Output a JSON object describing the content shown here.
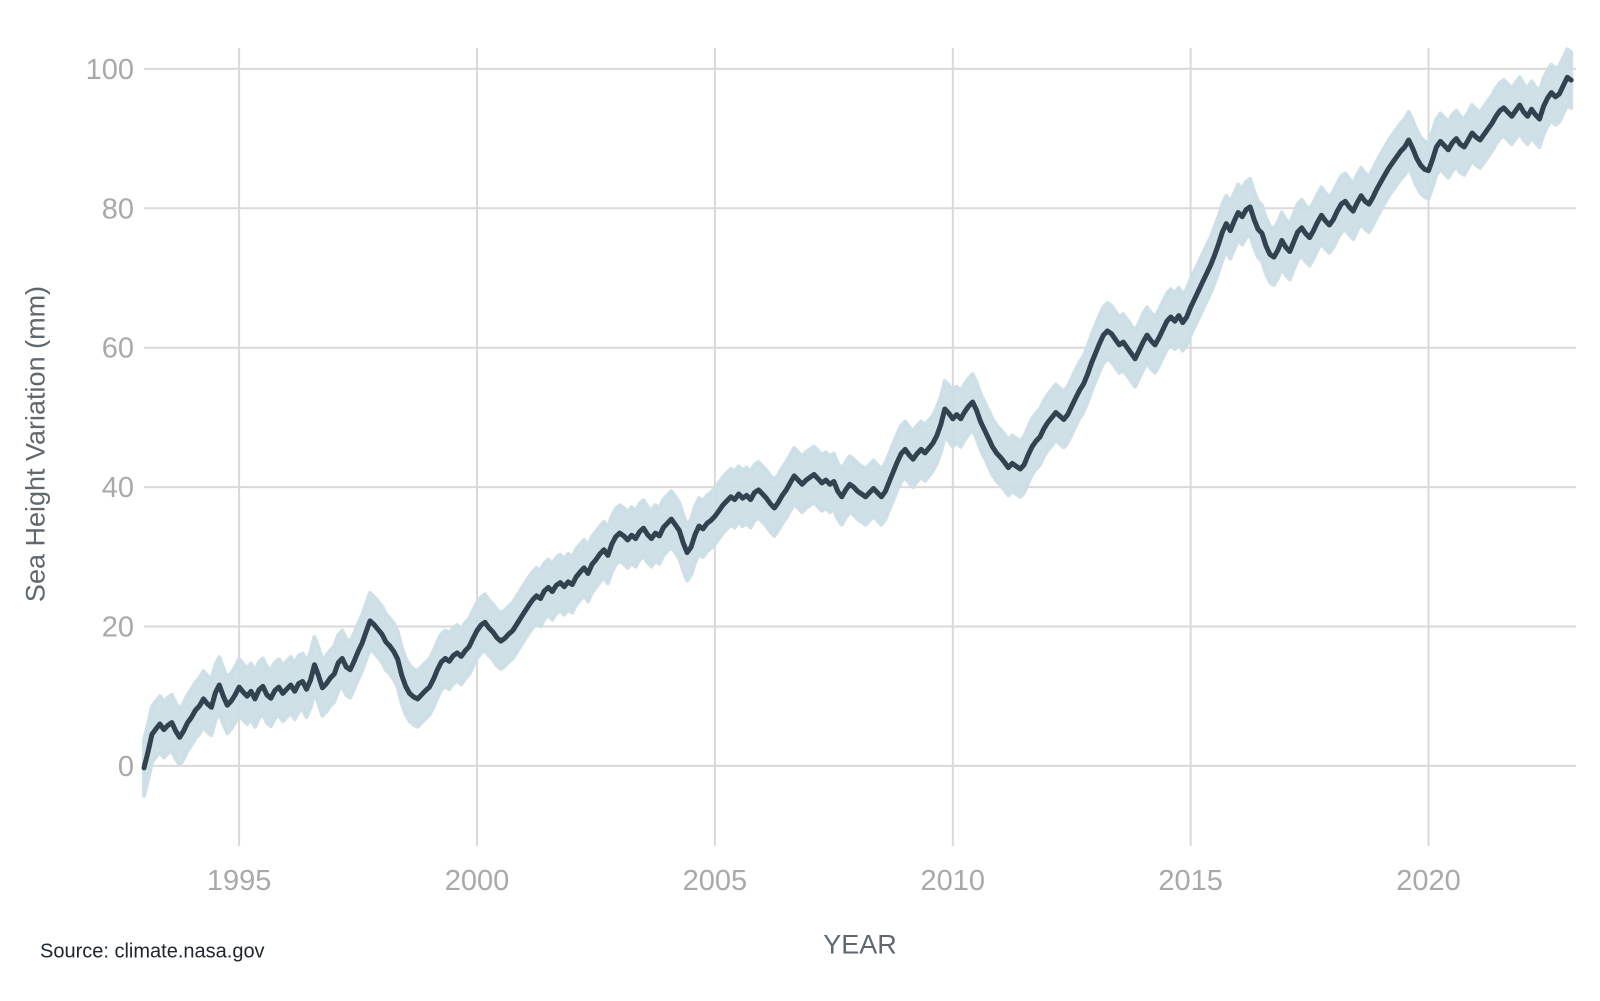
{
  "chart_data": {
    "type": "line",
    "title": "",
    "xlabel": "YEAR",
    "ylabel": "Sea Height Variation (mm)",
    "source": "Source: climate.nasa.gov",
    "x_ticks": [
      1995,
      2000,
      2005,
      2010,
      2015,
      2020
    ],
    "y_ticks": [
      0,
      20,
      40,
      60,
      80,
      100
    ],
    "xlim": [
      1993.0,
      2023.1
    ],
    "ylim": [
      -11.5,
      103.0
    ],
    "grid": true,
    "legend": "none",
    "uncertainty_mm": 4.0,
    "colors": {
      "line": "#30434e",
      "band": "#ccdee5",
      "grid": "#d9d9d9",
      "tick_label": "#a9a9a9",
      "axis_title": "#5e686e",
      "source_text": "#1d272e",
      "background": "#ffffff"
    },
    "series": [
      {
        "name": "Sea Height Variation",
        "x_start": 1993.0,
        "x_step_years": 0.0833333,
        "values": [
          -0.3,
          2.0,
          4.5,
          5.3,
          6.0,
          5.2,
          5.8,
          6.2,
          5.0,
          4.1,
          5.0,
          6.2,
          7.0,
          8.0,
          8.6,
          9.6,
          8.9,
          8.4,
          10.5,
          11.6,
          10.0,
          8.7,
          9.3,
          10.2,
          11.3,
          10.6,
          10.0,
          10.7,
          9.6,
          10.9,
          11.4,
          10.2,
          9.7,
          10.8,
          11.3,
          10.4,
          11.0,
          11.6,
          10.7,
          11.8,
          12.1,
          11.0,
          12.3,
          14.5,
          13.0,
          11.2,
          11.8,
          12.6,
          13.2,
          14.8,
          15.4,
          14.2,
          13.8,
          15.0,
          16.4,
          17.6,
          19.2,
          20.8,
          20.3,
          19.6,
          18.9,
          17.8,
          17.2,
          16.4,
          15.3,
          13.0,
          11.4,
          10.4,
          9.9,
          9.6,
          10.2,
          10.8,
          11.3,
          12.4,
          13.8,
          14.9,
          15.4,
          15.0,
          15.8,
          16.2,
          15.7,
          16.5,
          17.1,
          18.3,
          19.4,
          20.2,
          20.6,
          19.8,
          19.2,
          18.4,
          17.9,
          18.3,
          18.9,
          19.4,
          20.3,
          21.2,
          22.1,
          23.0,
          23.8,
          24.4,
          24.0,
          25.1,
          25.6,
          25.0,
          25.9,
          26.3,
          25.7,
          26.4,
          26.0,
          27.1,
          27.8,
          28.4,
          27.6,
          28.9,
          29.6,
          30.4,
          31.0,
          30.2,
          31.8,
          32.9,
          33.4,
          33.0,
          32.4,
          33.1,
          32.6,
          33.6,
          34.1,
          33.2,
          32.6,
          33.4,
          33.0,
          34.2,
          34.8,
          35.4,
          34.6,
          33.8,
          32.0,
          30.6,
          31.4,
          33.2,
          34.4,
          34.0,
          34.8,
          35.2,
          35.8,
          36.6,
          37.4,
          38.0,
          38.6,
          38.2,
          39.0,
          38.4,
          38.8,
          38.2,
          39.2,
          39.6,
          39.0,
          38.4,
          37.6,
          37.0,
          37.8,
          38.8,
          39.6,
          40.6,
          41.6,
          41.0,
          40.4,
          41.0,
          41.4,
          41.8,
          41.2,
          40.6,
          41.0,
          40.4,
          40.8,
          39.4,
          38.6,
          39.6,
          40.4,
          40.0,
          39.4,
          39.0,
          38.6,
          39.2,
          39.8,
          39.2,
          38.6,
          39.4,
          40.8,
          42.2,
          43.6,
          44.8,
          45.4,
          44.6,
          44.0,
          44.8,
          45.4,
          44.9,
          45.6,
          46.3,
          47.4,
          49.0,
          51.2,
          50.6,
          49.8,
          50.4,
          49.8,
          50.8,
          51.6,
          52.2,
          51.0,
          49.4,
          48.2,
          47.0,
          45.8,
          44.9,
          44.3,
          43.6,
          42.8,
          43.4,
          43.0,
          42.6,
          43.2,
          44.6,
          45.8,
          46.6,
          47.2,
          48.4,
          49.3,
          50.0,
          50.7,
          50.2,
          49.7,
          50.4,
          51.6,
          52.8,
          53.9,
          54.8,
          56.2,
          57.8,
          59.2,
          60.6,
          61.8,
          62.4,
          62.0,
          61.2,
          60.4,
          60.8,
          60.0,
          59.2,
          58.4,
          59.6,
          60.8,
          61.8,
          61.0,
          60.4,
          61.4,
          62.6,
          63.8,
          64.4,
          63.8,
          64.6,
          63.6,
          64.4,
          65.8,
          67.0,
          68.2,
          69.4,
          70.6,
          71.8,
          73.2,
          74.8,
          76.6,
          77.8,
          76.8,
          78.2,
          79.4,
          78.8,
          79.8,
          80.2,
          78.4,
          77.0,
          76.4,
          74.6,
          73.4,
          73.0,
          74.0,
          75.4,
          74.4,
          73.8,
          75.2,
          76.6,
          77.2,
          76.4,
          75.8,
          76.8,
          78.0,
          79.0,
          78.2,
          77.6,
          78.4,
          79.6,
          80.6,
          81.0,
          80.2,
          79.6,
          80.8,
          81.8,
          81.0,
          80.6,
          81.6,
          82.8,
          83.8,
          84.8,
          85.8,
          86.6,
          87.4,
          88.2,
          88.8,
          89.8,
          88.6,
          87.2,
          86.2,
          85.6,
          85.4,
          87.0,
          88.8,
          89.6,
          89.0,
          88.4,
          89.4,
          90.0,
          89.2,
          88.8,
          89.8,
          90.8,
          90.2,
          89.8,
          90.6,
          91.4,
          92.2,
          93.2,
          94.0,
          94.4,
          93.8,
          93.2,
          94.0,
          94.8,
          93.8,
          93.2,
          94.2,
          93.4,
          92.8,
          94.6,
          95.8,
          96.6,
          96.0,
          96.4,
          97.6,
          98.8,
          98.4
        ]
      }
    ]
  }
}
